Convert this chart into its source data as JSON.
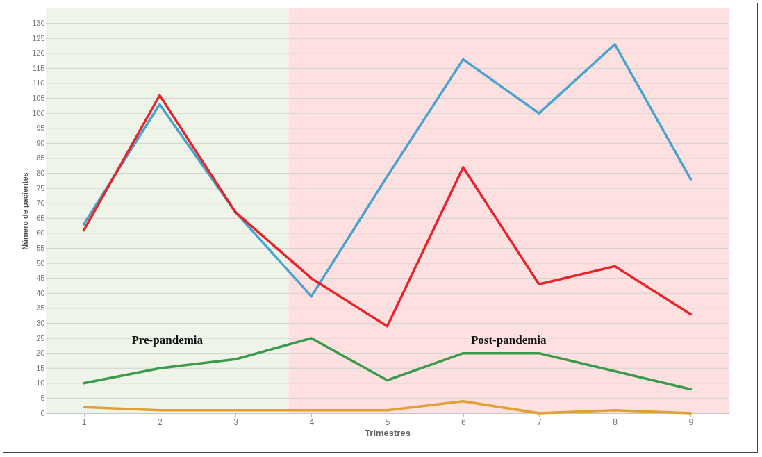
{
  "chart_data": {
    "type": "line",
    "xlabel": "Trimestres",
    "ylabel": "Número de pacientes",
    "x": [
      1,
      2,
      3,
      4,
      5,
      6,
      7,
      8,
      9
    ],
    "xlim": [
      0.5,
      9.5
    ],
    "xticks": [
      1,
      2,
      3,
      4,
      5,
      6,
      7,
      8,
      9
    ],
    "ylim": [
      0,
      135
    ],
    "yticks": [
      0,
      5,
      10,
      15,
      20,
      25,
      30,
      35,
      40,
      45,
      50,
      55,
      60,
      65,
      70,
      75,
      80,
      85,
      90,
      95,
      100,
      105,
      110,
      115,
      120,
      125,
      130
    ],
    "grid": "y",
    "legend": false,
    "series": [
      {
        "color": "#4aa3cf",
        "values": [
          63,
          103,
          67,
          39,
          79,
          118,
          100,
          123,
          78
        ]
      },
      {
        "color": "#e8242b",
        "values": [
          61,
          106,
          67,
          45,
          29,
          82,
          43,
          49,
          33
        ]
      },
      {
        "color": "#3c9a4c",
        "values": [
          10,
          15,
          18,
          25,
          11,
          20,
          20,
          14,
          8
        ]
      },
      {
        "color": "#e0a035",
        "values": [
          2,
          1,
          1,
          1,
          1,
          4,
          0,
          1,
          0
        ]
      }
    ],
    "bands": [
      {
        "axis": "x",
        "from": 0.5,
        "to": 3.7,
        "label": "Pre-pandemia",
        "color": "#eef5e8"
      },
      {
        "axis": "x",
        "from": 3.7,
        "to": 9.5,
        "label": "Post-pandemia",
        "color": "#fde0df"
      }
    ]
  }
}
